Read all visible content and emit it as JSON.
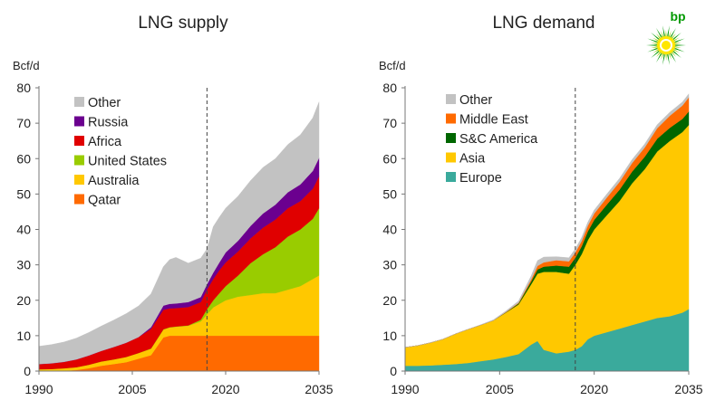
{
  "brand": {
    "name": "bp",
    "logo_icon": "bp-helios-logo",
    "wordmark_color": "#009900"
  },
  "chart_data": [
    {
      "type": "area",
      "title": "LNG supply",
      "ylabel": "Bcf/d",
      "xlim": [
        1990,
        2035
      ],
      "ylim": [
        0,
        80
      ],
      "xticks": [
        1990,
        2005,
        2020,
        2035
      ],
      "yticks": [
        0,
        10,
        20,
        30,
        40,
        50,
        60,
        70,
        80
      ],
      "grid": false,
      "legend_position": "top-left",
      "divider_year": 2017,
      "divider_style": "dashed",
      "x": [
        1990,
        1992,
        1994,
        1996,
        1998,
        2000,
        2002,
        2004,
        2006,
        2008,
        2010,
        2011,
        2012,
        2014,
        2016,
        2017,
        2018,
        2019,
        2020,
        2022,
        2024,
        2026,
        2028,
        2030,
        2032,
        2034,
        2035
      ],
      "series": [
        {
          "name": "Qatar",
          "color": "#ff6a00",
          "values": [
            0,
            0,
            0.1,
            0.3,
            0.8,
            1.5,
            2,
            2.5,
            3.5,
            4.5,
            9.5,
            10,
            10,
            10,
            10,
            10,
            10,
            10,
            10,
            10,
            10,
            10,
            10,
            10,
            10,
            10,
            10
          ]
        },
        {
          "name": "Australia",
          "color": "#ffc800",
          "values": [
            0.5,
            0.6,
            0.7,
            0.8,
            1,
            1.2,
            1.3,
            1.5,
            1.6,
            1.8,
            2.2,
            2.3,
            2.5,
            2.8,
            4,
            6,
            8,
            9,
            10,
            11,
            11.5,
            12,
            12,
            13,
            14,
            16,
            17
          ]
        },
        {
          "name": "United States",
          "color": "#99cc00",
          "values": [
            0,
            0,
            0,
            0,
            0,
            0,
            0,
            0,
            0,
            0.1,
            0.1,
            0.1,
            0.1,
            0.1,
            0.5,
            1.5,
            2,
            3,
            4,
            6,
            9,
            11,
            13,
            15,
            16,
            17,
            19
          ]
        },
        {
          "name": "Africa",
          "color": "#e00000",
          "values": [
            1.5,
            1.6,
            1.8,
            2.2,
            2.6,
            3,
            3.5,
            4,
            4.5,
            5.5,
            5.5,
            5.3,
            5.2,
            5.2,
            5,
            5.5,
            6,
            6.5,
            6.7,
            6.8,
            7,
            7.5,
            7.8,
            8,
            8,
            8.5,
            9
          ]
        },
        {
          "name": "Russia",
          "color": "#6b008f",
          "values": [
            0,
            0,
            0,
            0,
            0,
            0,
            0,
            0,
            0,
            0.5,
            1.2,
            1.3,
            1.3,
            1.4,
            1.4,
            1.5,
            1.8,
            2.2,
            2.8,
            3,
            3.5,
            4,
            4.2,
            4.5,
            4.7,
            5,
            5.2
          ]
        },
        {
          "name": "Other",
          "color": "#c2c2c2",
          "values": [
            5,
            5.3,
            5.6,
            6,
            6.5,
            7,
            7.6,
            8.2,
            8.8,
            9.4,
            11,
            12.5,
            13,
            11,
            11,
            10,
            13,
            12.8,
            12.5,
            12.6,
            12.8,
            13,
            13,
            13.5,
            14,
            15,
            15.8
          ]
        }
      ]
    },
    {
      "type": "area",
      "title": "LNG demand",
      "ylabel": "Bcf/d",
      "xlim": [
        1990,
        2035
      ],
      "ylim": [
        0,
        80
      ],
      "xticks": [
        1990,
        2005,
        2020,
        2035
      ],
      "yticks": [
        0,
        10,
        20,
        30,
        40,
        50,
        60,
        70,
        80
      ],
      "grid": false,
      "legend_position": "top-left",
      "divider_year": 2017,
      "divider_style": "dashed",
      "x": [
        1990,
        1992,
        1994,
        1996,
        1998,
        2000,
        2002,
        2004,
        2006,
        2008,
        2010,
        2011,
        2012,
        2014,
        2016,
        2017,
        2018,
        2019,
        2020,
        2022,
        2024,
        2026,
        2028,
        2030,
        2032,
        2034,
        2035
      ],
      "series": [
        {
          "name": "Europe",
          "color": "#3aaa9c",
          "values": [
            1.5,
            1.5,
            1.6,
            1.8,
            2,
            2.3,
            2.8,
            3.3,
            4,
            4.8,
            7.5,
            8.5,
            6,
            5,
            5.5,
            6,
            7,
            9,
            10,
            11,
            12,
            13,
            14,
            15,
            15.5,
            16.5,
            17.5
          ]
        },
        {
          "name": "Asia",
          "color": "#ffc800",
          "values": [
            5.2,
            5.7,
            6.4,
            7.2,
            8.5,
            9.5,
            10.2,
            11,
            12.5,
            14,
            17,
            19,
            22,
            23,
            22,
            24,
            26,
            28,
            30,
            33,
            36,
            40,
            43,
            47,
            49.5,
            51,
            52
          ]
        },
        {
          "name": "S&C America",
          "color": "#006600",
          "values": [
            0,
            0,
            0,
            0,
            0,
            0,
            0,
            0,
            0.1,
            0.3,
            0.8,
            1.2,
            1.5,
            1.8,
            2,
            2,
            2.2,
            2.5,
            2.7,
            3,
            3.2,
            3.3,
            3.5,
            3.6,
            3.7,
            3.7,
            3.8
          ]
        },
        {
          "name": "Middle East",
          "color": "#ff6a00",
          "values": [
            0,
            0,
            0,
            0,
            0,
            0,
            0,
            0,
            0.1,
            0.2,
            0.6,
            1,
            1.2,
            1.5,
            1.5,
            1.5,
            1.5,
            1.6,
            1.8,
            2,
            2.2,
            2.4,
            2.6,
            3,
            3.4,
            3.8,
            4
          ]
        },
        {
          "name": "Other",
          "color": "#c2c2c2",
          "values": [
            0,
            0,
            0,
            0,
            0,
            0,
            0.1,
            0.2,
            0.3,
            0.5,
            1,
            1.5,
            1.5,
            1,
            1,
            1,
            1,
            1,
            1,
            1,
            1,
            1,
            1,
            1,
            1,
            1,
            1
          ]
        }
      ]
    }
  ]
}
